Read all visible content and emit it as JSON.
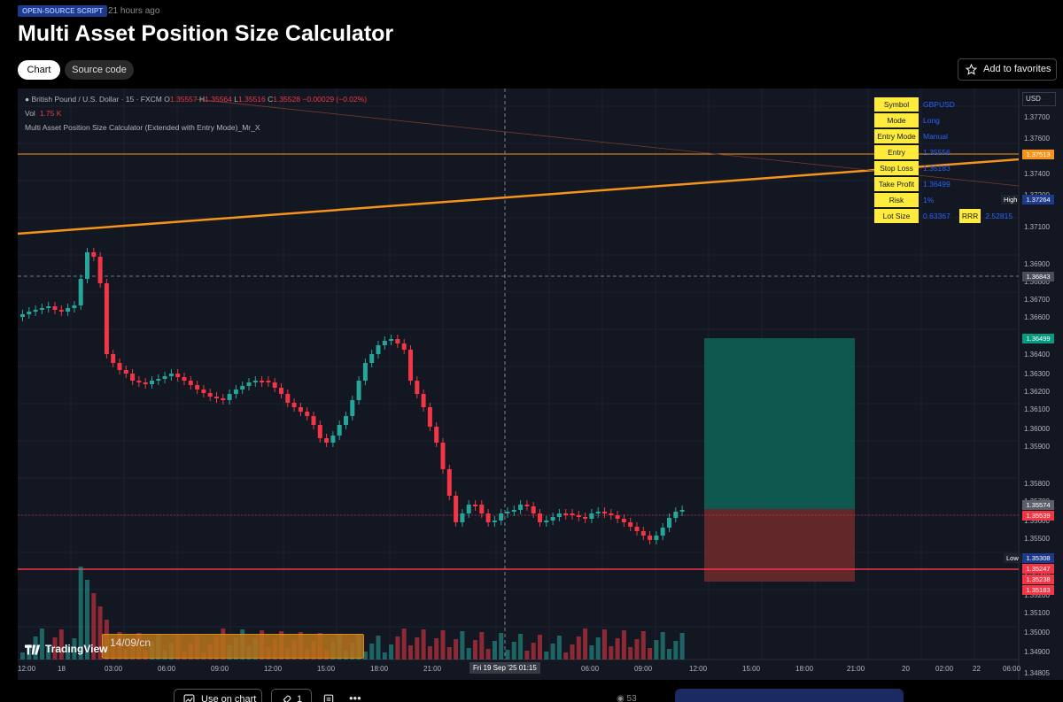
{
  "header": {
    "badge": "OPEN-SOURCE SCRIPT",
    "posted_ago": "21 hours ago",
    "title": "Multi Asset Position Size Calculator",
    "tabs": [
      {
        "label": "Chart",
        "active": true
      },
      {
        "label": "Source code",
        "active": false
      }
    ],
    "favorites_label": "Add to favorites"
  },
  "chart": {
    "symbol_line": "British Pound / U.S. Dollar · 15 · FXCM",
    "ohlc": {
      "o_label": "O",
      "o": "1.35557",
      "h_label": "H",
      "h": "1.35564",
      "l_label": "L",
      "l": "1.35516",
      "c_label": "C",
      "c": "1.35528",
      "change": "−0.00029 (−0.02%)"
    },
    "volume_label": "Vol",
    "volume": "1.75 K",
    "indicator_name": "Multi Asset Position Size Calculator (Extended with Entry Mode)_Mr_X",
    "currency": "USD",
    "brand": "TradingView",
    "date_range_label": "14/09/cn",
    "crosshair_time": "Fri 19 Sep '25   01:15",
    "colors": {
      "up": "#26a69a",
      "down": "#f23645",
      "trendline": "#f7931a",
      "panel_key": "#ffeb3b",
      "background": "#131722"
    },
    "price_ticks": [
      "1.37700",
      "1.37600",
      "1.37400",
      "1.37200",
      "1.37100",
      "1.36900",
      "1.36800",
      "1.36700",
      "1.36600",
      "1.36500",
      "1.36400",
      "1.36300",
      "1.36200",
      "1.36100",
      "1.36000",
      "1.35900",
      "1.35800",
      "1.35700",
      "1.35600",
      "1.35500",
      "1.35400",
      "1.35300",
      "1.35200",
      "1.35100",
      "1.35000",
      "1.34900",
      "1.34805"
    ],
    "time_ticks": [
      "12:00",
      "18",
      "03:00",
      "06:00",
      "09:00",
      "12:00",
      "15:00",
      "18:00",
      "21:00",
      "03:00",
      "06:00",
      "09:00",
      "12:00",
      "15:00",
      "18:00",
      "21:00",
      "20",
      "02:00",
      "22",
      "06:00"
    ],
    "price_tags": {
      "line_level": "1.37513",
      "high_label": "High",
      "high": "1.37264",
      "crosshair": "1.36843",
      "take_profit": "1.36499",
      "price_a": "1.35574",
      "price_b": "1.35539",
      "low_label": "Low",
      "low": "1.35308",
      "sl_a": "1.35247",
      "sl_b": "1.35238",
      "sl_c": "1.35183"
    },
    "info_panel": [
      {
        "key": "Symbol",
        "value": "GBPUSD"
      },
      {
        "key": "Mode",
        "value": "Long"
      },
      {
        "key": "Entry Mode",
        "value": "Manual"
      },
      {
        "key": "Entry",
        "value": "1.35556"
      },
      {
        "key": "Stop Loss",
        "value": "1.35183"
      },
      {
        "key": "Take Profit",
        "value": "1.36499"
      },
      {
        "key": "Risk",
        "value": "1%"
      },
      {
        "key": "Lot Size",
        "value": "0.63367",
        "extra_key": "RRR",
        "extra_value": "2.52815"
      }
    ]
  },
  "footer": {
    "use_on_chart": "Use on chart",
    "boosts": "1",
    "views": "53"
  }
}
